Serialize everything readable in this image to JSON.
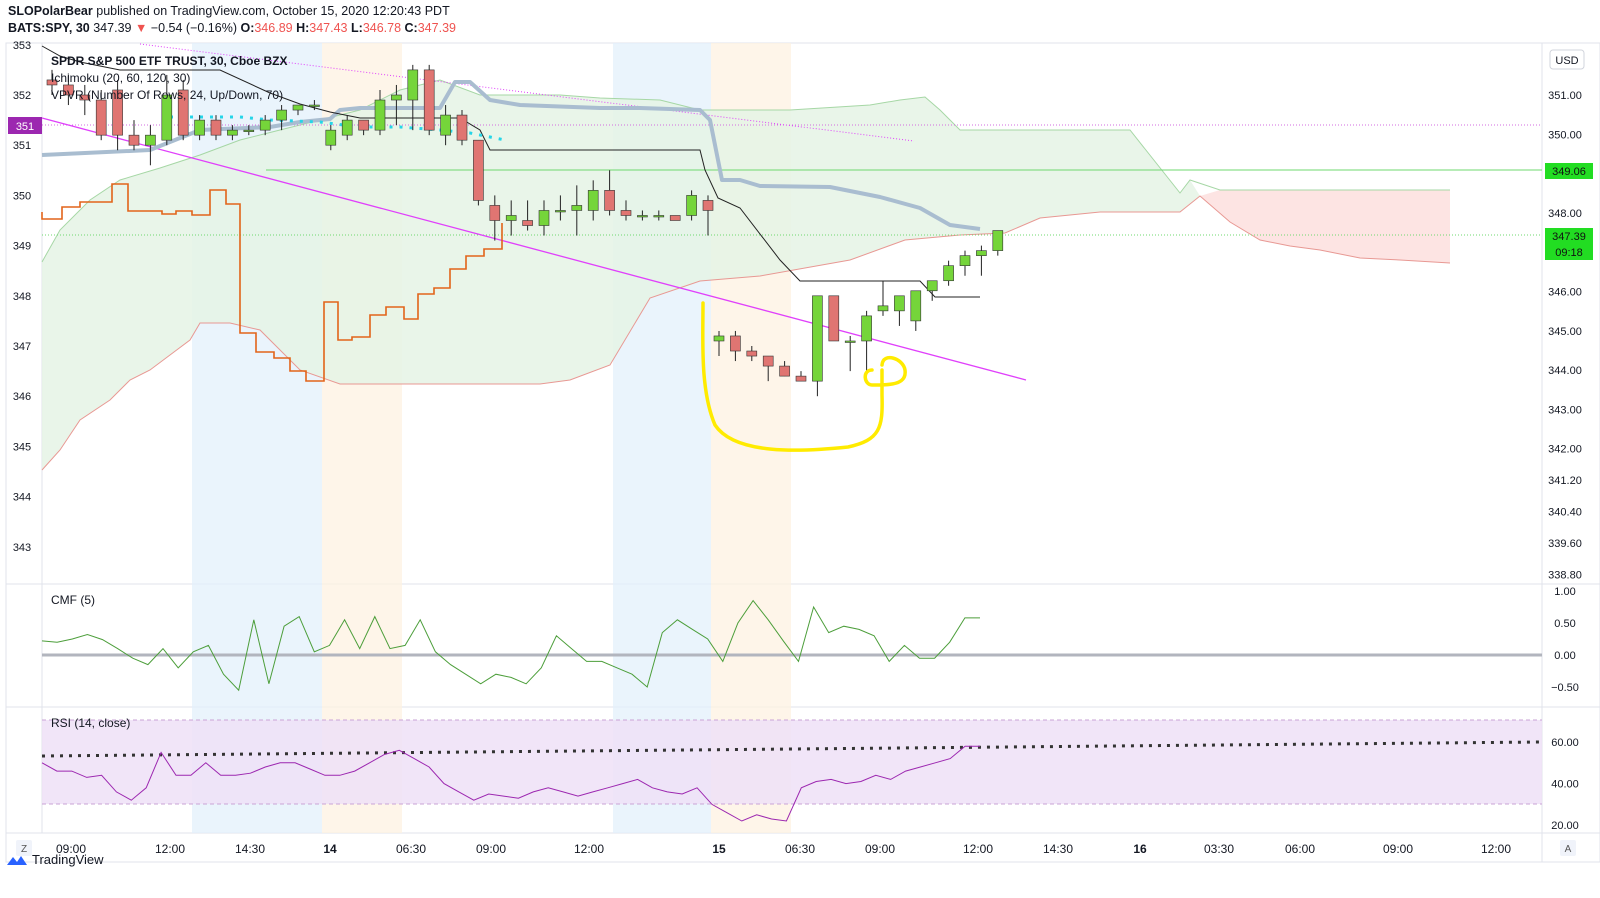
{
  "header": {
    "author": "SLOPolarBear",
    "published": "published on TradingView.com, October 15, 2020 12:20:43 PDT",
    "symbol": "BATS:SPY, 30",
    "price": "347.39",
    "change_arrow": "▼",
    "change": "−0.54 (−0.16%)",
    "o_label": "O:",
    "o_value": "346.89",
    "h_label": "H:",
    "h_value": "347.43",
    "l_label": "L:",
    "l_value": "346.78",
    "c_label": "C:",
    "c_value": "347.39"
  },
  "legend": {
    "title": "SPDR S&P 500 ETF TRUST, 30, Cboe BZX",
    "ichimoku": "Ichimoku (20, 60, 120, 30)",
    "vpvr": "VPVR (Number Of Rows, 24, Up/Down, 70)",
    "cmf": "CMF (5)",
    "rsi": "RSI (14, close)"
  },
  "currency": "USD",
  "price_tags": {
    "left_tag": "351",
    "line_level": "349.06",
    "last_price": "347.39",
    "countdown": "09:18"
  },
  "footer": {
    "brand": "TradingView"
  },
  "bottom_controls": {
    "zoom": "Z",
    "auto": "A"
  },
  "colors": {
    "up": "#75d53a",
    "down": "#e07572",
    "kumo_bull": "#e3f2e3",
    "kumo_bear": "#fde3e2",
    "lagging": "#e2641a",
    "baseline": "#a9bdd0",
    "cmf": "#4c9e3a",
    "rsi": "#9c27b0",
    "annotation": "#ffeb00",
    "trend": "#e040fb"
  },
  "chart_data": [
    {
      "type": "candlestick",
      "title": "SPDR S&P 500 ETF TRUST, 30, Cboe BZX",
      "ylim": [
        342.4,
        353.0
      ],
      "left_ticks": [
        "343",
        "344",
        "345",
        "346",
        "347",
        "348",
        "349",
        "350",
        "351",
        "352",
        "353"
      ],
      "right_ticks": [
        "338.80",
        "339.60",
        "340.40",
        "341.20",
        "342.00",
        "343.00",
        "344.00",
        "345.00",
        "346.00",
        "347.00",
        "348.00",
        "349.06",
        "350.00",
        "351.00"
      ],
      "x_ticks": [
        "09:00",
        "12:00",
        "14:30",
        "14",
        "06:30",
        "09:00",
        "12:00",
        "15",
        "06:30",
        "09:00",
        "12:00",
        "14:30",
        "16",
        "03:30",
        "06:00",
        "09:00",
        "12:00"
      ],
      "candles": [
        [
          352.3,
          352.5,
          352.0,
          352.2
        ],
        [
          352.2,
          352.4,
          351.8,
          352.0
        ],
        [
          352.0,
          352.2,
          351.6,
          351.9
        ],
        [
          351.9,
          352.1,
          351.1,
          351.2
        ],
        [
          352.1,
          352.3,
          350.9,
          351.2
        ],
        [
          351.2,
          351.5,
          350.9,
          351.0
        ],
        [
          351.0,
          351.4,
          350.6,
          351.2
        ],
        [
          351.1,
          352.4,
          351.0,
          352.0
        ],
        [
          352.1,
          352.3,
          351.1,
          351.2
        ],
        [
          351.2,
          351.6,
          351.1,
          351.5
        ],
        [
          351.5,
          351.6,
          351.1,
          351.2
        ],
        [
          351.2,
          351.4,
          351.1,
          351.3
        ],
        [
          351.3,
          351.4,
          351.2,
          351.3
        ],
        [
          351.3,
          351.6,
          351.2,
          351.5
        ],
        [
          351.5,
          351.8,
          351.3,
          351.7
        ],
        [
          351.7,
          351.8,
          351.6,
          351.8
        ],
        [
          351.8,
          351.9,
          351.7,
          351.8
        ],
        [
          351.0,
          351.4,
          350.9,
          351.3
        ],
        [
          351.2,
          351.6,
          351.1,
          351.5
        ],
        [
          351.5,
          351.5,
          351.2,
          351.3
        ],
        [
          351.3,
          352.1,
          351.2,
          351.9
        ],
        [
          351.9,
          352.2,
          351.4,
          352.0
        ],
        [
          351.9,
          352.6,
          351.3,
          352.5
        ],
        [
          352.5,
          352.6,
          351.2,
          351.3
        ],
        [
          351.2,
          351.8,
          351.0,
          351.6
        ],
        [
          351.6,
          351.7,
          351.0,
          351.1
        ],
        [
          351.1,
          351.1,
          349.8,
          349.9
        ],
        [
          349.8,
          350.0,
          349.1,
          349.5
        ],
        [
          349.5,
          349.9,
          349.2,
          349.6
        ],
        [
          349.5,
          349.9,
          349.3,
          349.4
        ],
        [
          349.4,
          349.9,
          349.2,
          349.7
        ],
        [
          349.7,
          350.0,
          349.5,
          349.7
        ],
        [
          349.7,
          350.2,
          349.2,
          349.8
        ],
        [
          349.7,
          350.3,
          349.5,
          350.1
        ],
        [
          350.1,
          350.5,
          349.6,
          349.7
        ],
        [
          349.7,
          349.9,
          349.5,
          349.6
        ],
        [
          349.6,
          349.7,
          349.5,
          349.6
        ],
        [
          349.6,
          349.7,
          349.5,
          349.6
        ],
        [
          349.6,
          349.6,
          349.5,
          349.5
        ],
        [
          349.6,
          350.1,
          349.5,
          350.0
        ],
        [
          349.9,
          350.0,
          349.2,
          349.7
        ],
        [
          347.1,
          347.3,
          346.8,
          347.2
        ],
        [
          347.2,
          347.3,
          346.7,
          346.9
        ],
        [
          346.9,
          347.0,
          346.7,
          346.8
        ],
        [
          346.8,
          346.8,
          346.3,
          346.6
        ],
        [
          346.6,
          346.7,
          346.4,
          346.4
        ],
        [
          346.4,
          346.5,
          346.3,
          346.3
        ],
        [
          346.3,
          348.0,
          346.0,
          348.0
        ],
        [
          348.0,
          348.0,
          347.1,
          347.1
        ],
        [
          347.1,
          347.2,
          346.5,
          347.1
        ],
        [
          347.1,
          347.7,
          346.5,
          347.6
        ],
        [
          347.7,
          348.3,
          347.6,
          347.8
        ],
        [
          347.7,
          348.0,
          347.4,
          348.0
        ],
        [
          347.5,
          348.1,
          347.3,
          348.1
        ],
        [
          348.1,
          348.2,
          347.9,
          348.3
        ],
        [
          348.3,
          348.7,
          348.2,
          348.6
        ],
        [
          348.6,
          348.9,
          348.4,
          348.8
        ],
        [
          348.8,
          349.0,
          348.4,
          348.9
        ],
        [
          348.9,
          349.3,
          348.8,
          349.3
        ]
      ]
    },
    {
      "type": "line",
      "title": "CMF (5)",
      "ylim": [
        -0.85,
        1.0
      ],
      "y_ticks": [
        "1.00",
        "0.50",
        "0.00",
        "−0.50"
      ],
      "values": [
        0.22,
        0.2,
        0.25,
        0.32,
        0.24,
        0.1,
        -0.05,
        -0.15,
        0.1,
        -0.2,
        0.05,
        0.15,
        -0.3,
        -0.55,
        0.55,
        -0.45,
        0.45,
        0.6,
        0.05,
        0.15,
        0.55,
        0.1,
        0.6,
        0.1,
        0.15,
        0.55,
        0.05,
        -0.15,
        -0.3,
        -0.45,
        -0.3,
        -0.35,
        -0.45,
        -0.2,
        0.3,
        0.1,
        -0.1,
        -0.1,
        -0.2,
        -0.3,
        -0.5,
        0.35,
        0.55,
        0.4,
        0.25,
        -0.1,
        0.5,
        0.85,
        0.55,
        0.22,
        -0.1,
        0.75,
        0.35,
        0.45,
        0.4,
        0.3,
        -0.1,
        0.15,
        -0.05,
        -0.05,
        0.2,
        0.58,
        0.58
      ]
    },
    {
      "type": "line",
      "title": "RSI (14, close)",
      "ylim": [
        15,
        75
      ],
      "y_ticks": [
        "60.00",
        "40.00",
        "20.00"
      ],
      "values": [
        50,
        46,
        46,
        43,
        44,
        36,
        32,
        38,
        55,
        44,
        44,
        50,
        44,
        44,
        45,
        48,
        50,
        50,
        47,
        44,
        44,
        46,
        50,
        54,
        56,
        52,
        48,
        40,
        36,
        32,
        35,
        34,
        33,
        36,
        38,
        36,
        34,
        36,
        38,
        40,
        42,
        38,
        36,
        35,
        38,
        30,
        26,
        22,
        25,
        23,
        22,
        38,
        41,
        42,
        40,
        41,
        44,
        42,
        46,
        48,
        50,
        52,
        58,
        58
      ]
    }
  ]
}
